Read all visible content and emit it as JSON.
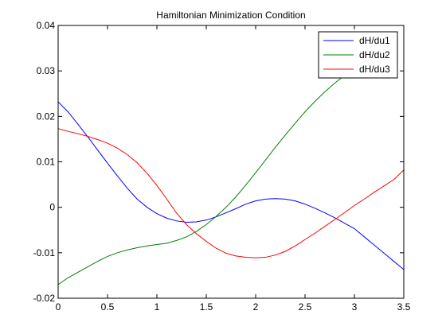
{
  "chart_data": {
    "type": "line",
    "title": "Hamiltonian Minimization Condition",
    "xlabel": "",
    "ylabel": "",
    "xlim": [
      0,
      3.5
    ],
    "ylim": [
      -0.02,
      0.04
    ],
    "xticks": [
      0,
      0.5,
      1,
      1.5,
      2,
      2.5,
      3,
      3.5
    ],
    "xtick_labels": [
      "0",
      "0.5",
      "1",
      "1.5",
      "2",
      "2.5",
      "3",
      "3.5"
    ],
    "yticks": [
      -0.02,
      -0.01,
      0,
      0.01,
      0.02,
      0.03,
      0.04
    ],
    "ytick_labels": [
      "-0.02",
      "-0.01",
      "0",
      "0.01",
      "0.02",
      "0.03",
      "0.04"
    ],
    "grid": false,
    "legend_position": "top-right",
    "series": [
      {
        "name": "dH/du1",
        "color": "#0000ff",
        "x": [
          0,
          0.1,
          0.2,
          0.3,
          0.4,
          0.5,
          0.6,
          0.7,
          0.8,
          0.9,
          1.0,
          1.1,
          1.2,
          1.3,
          1.4,
          1.5,
          1.6,
          1.7,
          1.8,
          1.9,
          2.0,
          2.1,
          2.2,
          2.3,
          2.4,
          2.5,
          2.6,
          2.7,
          2.8,
          2.9,
          3.0,
          3.1,
          3.2,
          3.3,
          3.4,
          3.5
        ],
        "y": [
          0.0232,
          0.021,
          0.0183,
          0.0155,
          0.0126,
          0.0097,
          0.0069,
          0.0042,
          0.0018,
          0.0,
          -0.0014,
          -0.0024,
          -0.003,
          -0.0033,
          -0.0032,
          -0.0028,
          -0.0021,
          -0.0012,
          -0.0003,
          0.0007,
          0.0014,
          0.0018,
          0.0019,
          0.0018,
          0.0014,
          0.0007,
          -0.0002,
          -0.0012,
          -0.0023,
          -0.0035,
          -0.0047,
          -0.0065,
          -0.0083,
          -0.0101,
          -0.0119,
          -0.0137
        ]
      },
      {
        "name": "dH/du2",
        "color": "#008000",
        "x": [
          0,
          0.1,
          0.2,
          0.3,
          0.4,
          0.5,
          0.6,
          0.7,
          0.8,
          0.9,
          1.0,
          1.1,
          1.2,
          1.3,
          1.4,
          1.5,
          1.6,
          1.7,
          1.8,
          1.9,
          2.0,
          2.1,
          2.2,
          2.3,
          2.4,
          2.5,
          2.6,
          2.7,
          2.8,
          2.9,
          3.0,
          3.1,
          3.2,
          3.3
        ],
        "y": [
          -0.017,
          -0.0155,
          -0.0143,
          -0.0131,
          -0.0119,
          -0.0108,
          -0.01,
          -0.0094,
          -0.0089,
          -0.0085,
          -0.0082,
          -0.0079,
          -0.0073,
          -0.0065,
          -0.0053,
          -0.0038,
          -0.002,
          0.0,
          0.0023,
          0.0049,
          0.0076,
          0.0104,
          0.0132,
          0.0159,
          0.0185,
          0.021,
          0.0233,
          0.0254,
          0.0273,
          0.029,
          0.0304,
          0.0316,
          0.0326,
          0.0334
        ]
      },
      {
        "name": "dH/du3",
        "color": "#ff0000",
        "x": [
          0,
          0.1,
          0.2,
          0.3,
          0.4,
          0.5,
          0.6,
          0.7,
          0.8,
          0.9,
          1.0,
          1.1,
          1.2,
          1.3,
          1.4,
          1.5,
          1.6,
          1.7,
          1.8,
          1.9,
          2.0,
          2.1,
          2.2,
          2.3,
          2.4,
          2.5,
          2.6,
          2.7,
          2.8,
          2.9,
          3.0,
          3.1,
          3.2,
          3.3,
          3.4,
          3.5
        ],
        "y": [
          0.0173,
          0.0167,
          0.0162,
          0.0156,
          0.0149,
          0.0141,
          0.013,
          0.0116,
          0.0098,
          0.0075,
          0.0048,
          0.0018,
          -0.0013,
          -0.0038,
          -0.0058,
          -0.0075,
          -0.009,
          -0.0101,
          -0.0107,
          -0.011,
          -0.0111,
          -0.011,
          -0.0105,
          -0.0097,
          -0.0085,
          -0.0071,
          -0.0057,
          -0.0042,
          -0.0027,
          -0.0012,
          0.0004,
          0.0018,
          0.0033,
          0.0047,
          0.0061,
          0.0082
        ]
      }
    ]
  }
}
